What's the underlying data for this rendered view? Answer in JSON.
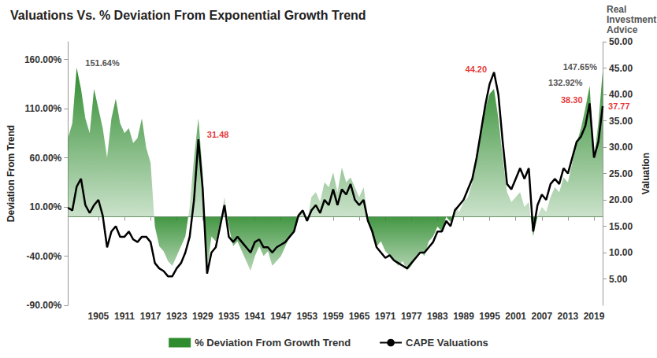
{
  "chart_data": {
    "type": "line",
    "title": "Valuations Vs. % Deviation From Exponential Growth Trend",
    "brand": [
      "Real",
      "Investment",
      "Advice"
    ],
    "xlim": [
      1898,
      2021
    ],
    "xticks": [
      1905,
      1911,
      1917,
      1923,
      1929,
      1935,
      1941,
      1947,
      1953,
      1959,
      1965,
      1971,
      1977,
      1983,
      1989,
      1995,
      2001,
      2007,
      2013,
      2019
    ],
    "ylabel": "Deviation From Trend",
    "ylim": [
      -90,
      178
    ],
    "yticks": [
      {
        "value": -90,
        "label": "-90.00%"
      },
      {
        "value": -40,
        "label": "-40.00%"
      },
      {
        "value": 10,
        "label": "10.00%"
      },
      {
        "value": 60,
        "label": "60.00%"
      },
      {
        "value": 110,
        "label": "110.00%"
      },
      {
        "value": 160,
        "label": "160.00%"
      }
    ],
    "y2label": "Valuation",
    "y2lim": [
      0,
      50
    ],
    "y2ticks": [
      {
        "value": 5,
        "label": "5.00"
      },
      {
        "value": 10,
        "label": "10.00"
      },
      {
        "value": 15,
        "label": "15.00"
      },
      {
        "value": 20,
        "label": "20.00"
      },
      {
        "value": 25,
        "label": "25.00"
      },
      {
        "value": 30,
        "label": "30.00"
      },
      {
        "value": 35,
        "label": "35.00"
      },
      {
        "value": 40,
        "label": "40.00"
      },
      {
        "value": 45,
        "label": "45.00"
      },
      {
        "value": 50,
        "label": "50.00"
      }
    ],
    "grid": false,
    "legend": "bottom",
    "x": [
      1898,
      1899,
      1900,
      1901,
      1902,
      1903,
      1904,
      1905,
      1906,
      1907,
      1908,
      1909,
      1910,
      1911,
      1912,
      1913,
      1914,
      1915,
      1916,
      1917,
      1918,
      1919,
      1920,
      1921,
      1922,
      1923,
      1924,
      1925,
      1926,
      1927,
      1928,
      1929,
      1930,
      1931,
      1932,
      1933,
      1934,
      1935,
      1936,
      1937,
      1938,
      1939,
      1940,
      1941,
      1942,
      1943,
      1944,
      1945,
      1946,
      1947,
      1948,
      1949,
      1950,
      1951,
      1952,
      1953,
      1954,
      1955,
      1956,
      1957,
      1958,
      1959,
      1960,
      1961,
      1962,
      1963,
      1964,
      1965,
      1966,
      1967,
      1968,
      1969,
      1970,
      1971,
      1972,
      1973,
      1974,
      1975,
      1976,
      1977,
      1978,
      1979,
      1980,
      1981,
      1982,
      1983,
      1984,
      1985,
      1986,
      1987,
      1988,
      1989,
      1990,
      1991,
      1992,
      1993,
      1994,
      1995,
      1996,
      1997,
      1998,
      1999,
      2000,
      2001,
      2002,
      2003,
      2004,
      2005,
      2006,
      2007,
      2008,
      2009,
      2010,
      2011,
      2012,
      2013,
      2014,
      2015,
      2016,
      2017,
      2018,
      2019,
      2020,
      2021
    ],
    "series": [
      {
        "name": "% Deviation From Growth Trend",
        "type": "area",
        "color": "#2e8b2e",
        "axis": "y",
        "values": [
          80,
          95,
          151.64,
          130,
          100,
          85,
          130,
          110,
          90,
          60,
          100,
          120,
          95,
          85,
          90,
          75,
          80,
          100,
          70,
          55,
          -10,
          -30,
          -35,
          -45,
          -50,
          -40,
          -30,
          -20,
          10,
          60,
          100,
          45,
          -55,
          -20,
          -25,
          -5,
          20,
          -10,
          -30,
          -25,
          -35,
          -45,
          -55,
          -40,
          -30,
          -40,
          -35,
          -50,
          -45,
          -40,
          -30,
          -20,
          -15,
          0,
          5,
          -5,
          20,
          25,
          15,
          35,
          30,
          45,
          25,
          50,
          35,
          40,
          30,
          20,
          30,
          0,
          -20,
          -30,
          -25,
          -35,
          -40,
          -45,
          -50,
          -45,
          -55,
          -50,
          -40,
          -35,
          -40,
          -25,
          -20,
          -10,
          -15,
          0,
          -5,
          10,
          5,
          15,
          20,
          35,
          60,
          85,
          110,
          125,
          130,
          100,
          60,
          25,
          15,
          20,
          25,
          10,
          15,
          -20,
          0,
          10,
          5,
          20,
          30,
          25,
          40,
          35,
          55,
          75,
          90,
          110,
          132.92,
          60,
          95,
          147.65
        ]
      },
      {
        "name": "CAPE Valuations",
        "type": "line",
        "color": "#000000",
        "axis": "y2",
        "values": [
          18.5,
          18,
          22.5,
          24,
          19,
          17.5,
          19,
          20,
          17,
          11,
          14,
          15,
          13,
          13,
          14,
          12.5,
          12,
          13,
          13,
          12,
          8,
          7,
          6.5,
          5.5,
          5.5,
          7,
          8,
          10,
          13,
          20,
          31.48,
          22,
          6,
          10,
          11,
          15,
          19,
          13,
          12,
          13,
          12,
          11,
          10,
          12,
          12.5,
          11,
          11,
          10,
          11,
          11.5,
          12,
          13,
          14,
          17,
          18,
          16,
          18,
          19,
          17.5,
          20,
          19,
          22,
          19,
          22,
          21,
          23,
          20,
          19,
          20,
          16,
          14,
          11,
          10,
          9,
          9.5,
          8.5,
          8,
          7.5,
          7,
          8,
          9,
          10,
          10,
          11,
          12,
          14,
          14,
          16,
          15,
          18,
          19,
          20,
          22,
          24,
          28,
          33,
          38,
          42,
          44.2,
          40,
          31,
          23,
          22,
          24,
          26,
          24,
          26,
          14,
          19,
          21,
          20,
          23,
          24,
          23,
          26,
          25,
          28,
          31,
          32,
          34,
          38.3,
          28,
          31,
          37.77
        ]
      }
    ],
    "annotations": [
      {
        "text": "151.64%",
        "x": 1900,
        "y": 151.64,
        "axis": "y",
        "color": "#222222"
      },
      {
        "text": "31.48",
        "x": 1928,
        "y": 31.48,
        "axis": "y2",
        "color": "#e00000"
      },
      {
        "text": "44.20",
        "x": 1996,
        "y": 44.2,
        "axis": "y2",
        "color": "#e00000"
      },
      {
        "text": "132.92%",
        "x": 2018,
        "y": 132.92,
        "axis": "y",
        "color": "#222222"
      },
      {
        "text": "38.30",
        "x": 2018,
        "y": 38.3,
        "axis": "y2",
        "color": "#e00000"
      },
      {
        "text": "147.65%",
        "x": 2021,
        "y": 147.65,
        "axis": "y",
        "color": "#222222"
      },
      {
        "text": "37.77",
        "x": 2021,
        "y": 37.77,
        "axis": "y2",
        "color": "#e00000"
      }
    ]
  }
}
